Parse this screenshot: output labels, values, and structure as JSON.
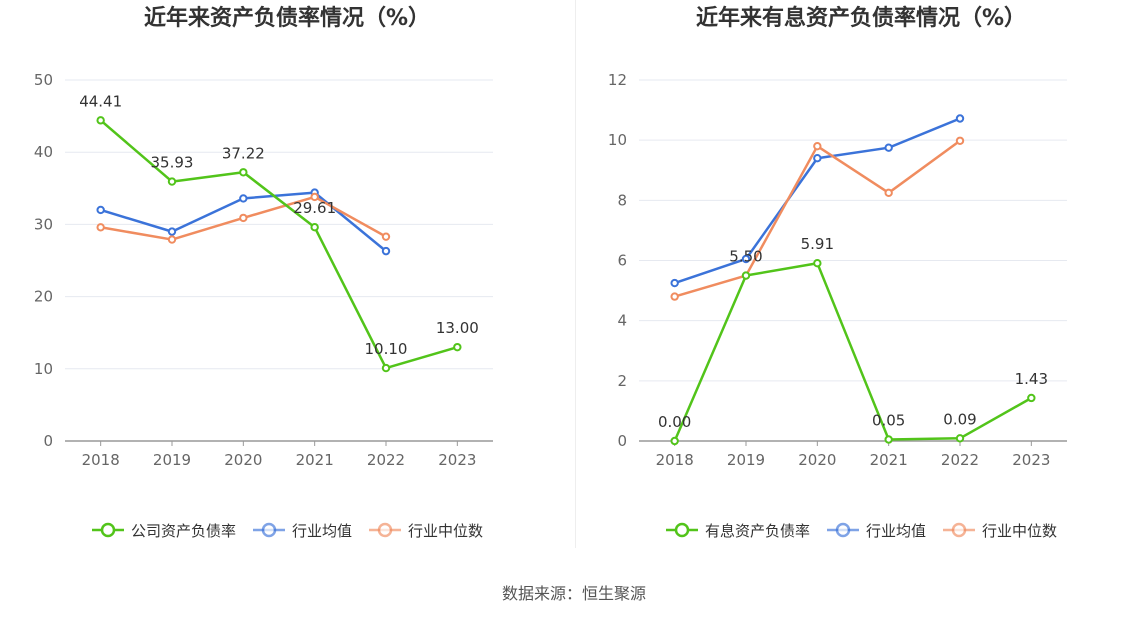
{
  "source_label": "数据来源：恒生聚源",
  "colors": {
    "company": "#52c41a",
    "avg": "#3b73d9",
    "median": "#f08c5f",
    "axis": "#999999",
    "grid": "#e6e9f0",
    "text": "#666666"
  },
  "chart_data": [
    {
      "type": "line",
      "title": "近年来资产负债率情况（%）",
      "categories": [
        "2018",
        "2019",
        "2020",
        "2021",
        "2022",
        "2023"
      ],
      "ylim": [
        0,
        50
      ],
      "yticks": [
        0,
        10,
        20,
        30,
        40,
        50
      ],
      "grid": true,
      "legend_position": "bottom",
      "series": [
        {
          "name": "公司资产负债率",
          "color": "#52c41a",
          "values": [
            44.41,
            35.93,
            37.22,
            29.61,
            10.1,
            13.0
          ],
          "labels": [
            "44.41",
            "35.93",
            "37.22",
            "29.61",
            "10.10",
            "13.00"
          ]
        },
        {
          "name": "行业均值",
          "color": "#3b73d9",
          "values": [
            32.0,
            29.0,
            33.6,
            34.4,
            26.3,
            null
          ]
        },
        {
          "name": "行业中位数",
          "color": "#f08c5f",
          "values": [
            29.6,
            27.9,
            30.9,
            33.8,
            28.3,
            null
          ]
        }
      ]
    },
    {
      "type": "line",
      "title": "近年来有息资产负债率情况（%）",
      "categories": [
        "2018",
        "2019",
        "2020",
        "2021",
        "2022",
        "2023"
      ],
      "ylim": [
        0,
        12
      ],
      "yticks": [
        0,
        2,
        4,
        6,
        8,
        10,
        12
      ],
      "grid": true,
      "legend_position": "bottom",
      "series": [
        {
          "name": "有息资产负债率",
          "color": "#52c41a",
          "values": [
            0.0,
            5.5,
            5.91,
            0.05,
            0.09,
            1.43
          ],
          "labels": [
            "0.00",
            "5.50",
            "5.91",
            "0.05",
            "0.09",
            "1.43"
          ]
        },
        {
          "name": "行业均值",
          "color": "#3b73d9",
          "values": [
            5.25,
            6.05,
            9.4,
            9.75,
            10.72,
            null
          ]
        },
        {
          "name": "行业中位数",
          "color": "#f08c5f",
          "values": [
            4.8,
            5.5,
            9.8,
            8.25,
            9.98,
            null
          ]
        }
      ]
    }
  ]
}
